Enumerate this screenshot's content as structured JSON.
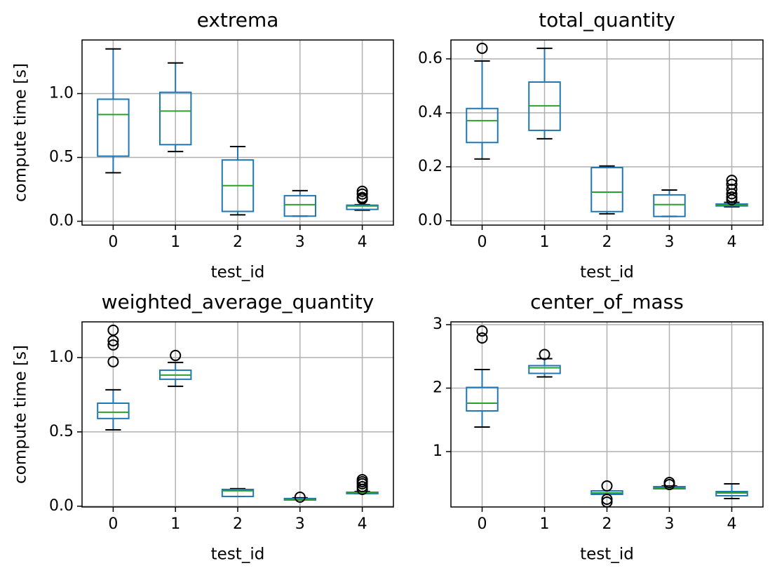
{
  "chart_data": [
    {
      "type": "box",
      "title": "extrema",
      "xlabel": "test_id",
      "ylabel": "compute time [s]",
      "categories": [
        "0",
        "1",
        "2",
        "3",
        "4"
      ],
      "color": "#1f77b4",
      "median_color": "#2ca02c",
      "grid": true,
      "ylim": [
        -0.03,
        1.42
      ],
      "yticks": [
        {
          "value": 0,
          "label": "0.0"
        },
        {
          "value": 0.5,
          "label": "0.5"
        },
        {
          "value": 1,
          "label": "1.0"
        }
      ],
      "boxes": [
        {
          "whislo": 0.38,
          "q1": 0.51,
          "med": 0.836,
          "q3": 0.956,
          "whishi": 1.35,
          "fliers": []
        },
        {
          "whislo": 0.546,
          "q1": 0.6,
          "med": 0.863,
          "q3": 1.01,
          "whishi": 1.24,
          "fliers": []
        },
        {
          "whislo": 0.05,
          "q1": 0.077,
          "med": 0.279,
          "q3": 0.48,
          "whishi": 0.585,
          "fliers": []
        },
        {
          "whislo": 0.04,
          "q1": 0.04,
          "med": 0.13,
          "q3": 0.2,
          "whishi": 0.24,
          "fliers": []
        },
        {
          "whislo": 0.087,
          "q1": 0.093,
          "med": 0.12,
          "q3": 0.126,
          "whishi": 0.13,
          "fliers": [
            0.235,
            0.213,
            0.186,
            0.175
          ]
        }
      ]
    },
    {
      "type": "box",
      "title": "total_quantity",
      "xlabel": "test_id",
      "categories": [
        "0",
        "1",
        "2",
        "3",
        "4"
      ],
      "color": "#1f77b4",
      "median_color": "#2ca02c",
      "grid": true,
      "ylim": [
        -0.016,
        0.67
      ],
      "yticks": [
        {
          "value": 0,
          "label": "0.0"
        },
        {
          "value": 0.2,
          "label": "0.2"
        },
        {
          "value": 0.4,
          "label": "0.4"
        },
        {
          "value": 0.6,
          "label": "0.6"
        }
      ],
      "boxes": [
        {
          "whislo": 0.229,
          "q1": 0.29,
          "med": 0.371,
          "q3": 0.416,
          "whishi": 0.592,
          "fliers": [
            0.639
          ]
        },
        {
          "whislo": 0.304,
          "q1": 0.335,
          "med": 0.426,
          "q3": 0.514,
          "whishi": 0.639,
          "fliers": []
        },
        {
          "whislo": 0.026,
          "q1": 0.034,
          "med": 0.106,
          "q3": 0.197,
          "whishi": 0.203,
          "fliers": []
        },
        {
          "whislo": 0.016,
          "q1": 0.016,
          "med": 0.06,
          "q3": 0.096,
          "whishi": 0.114,
          "fliers": []
        },
        {
          "whislo": 0.052,
          "q1": 0.055,
          "med": 0.058,
          "q3": 0.062,
          "whishi": 0.068,
          "fliers": [
            0.15,
            0.135,
            0.117,
            0.1,
            0.088,
            0.078
          ]
        }
      ]
    },
    {
      "type": "box",
      "title": "weighted_average_quantity",
      "xlabel": "test_id",
      "ylabel": "compute time [s]",
      "categories": [
        "0",
        "1",
        "2",
        "3",
        "4"
      ],
      "color": "#1f77b4",
      "median_color": "#2ca02c",
      "grid": true,
      "ylim": [
        -0.005,
        1.24
      ],
      "yticks": [
        {
          "value": 0,
          "label": "0.0"
        },
        {
          "value": 0.5,
          "label": "0.5"
        },
        {
          "value": 1,
          "label": "1.0"
        }
      ],
      "boxes": [
        {
          "whislo": 0.514,
          "q1": 0.59,
          "med": 0.632,
          "q3": 0.693,
          "whishi": 0.783,
          "fliers": [
            1.184,
            1.113,
            1.085,
            0.972
          ]
        },
        {
          "whislo": 0.807,
          "q1": 0.854,
          "med": 0.882,
          "q3": 0.915,
          "whishi": 0.967,
          "fliers": [
            1.014
          ]
        },
        {
          "whislo": 0.066,
          "q1": 0.066,
          "med": 0.104,
          "q3": 0.113,
          "whishi": 0.118,
          "fliers": []
        },
        {
          "whislo": 0.042,
          "q1": 0.042,
          "med": 0.047,
          "q3": 0.052,
          "whishi": 0.057,
          "fliers": [
            0.061
          ]
        },
        {
          "whislo": 0.085,
          "q1": 0.085,
          "med": 0.09,
          "q3": 0.094,
          "whishi": 0.099,
          "fliers": [
            0.179,
            0.165,
            0.151,
            0.132,
            0.113
          ]
        }
      ]
    },
    {
      "type": "box",
      "title": "center_of_mass",
      "xlabel": "test_id",
      "categories": [
        "0",
        "1",
        "2",
        "3",
        "4"
      ],
      "color": "#1f77b4",
      "median_color": "#2ca02c",
      "grid": true,
      "ylim": [
        0.127,
        3.044
      ],
      "yticks": [
        1,
        2,
        3
      ],
      "boxes": [
        {
          "whislo": 1.387,
          "q1": 1.641,
          "med": 1.762,
          "q3": 2.011,
          "whishi": 2.293,
          "fliers": [
            2.79,
            2.9
          ]
        },
        {
          "whislo": 2.177,
          "q1": 2.232,
          "med": 2.32,
          "q3": 2.354,
          "whishi": 2.464,
          "fliers": [
            2.53
          ]
        },
        {
          "whislo": 0.326,
          "q1": 0.326,
          "med": 0.348,
          "q3": 0.381,
          "whishi": 0.381,
          "fliers": [
            0.459,
            0.249,
            0.205
          ]
        },
        {
          "whislo": 0.414,
          "q1": 0.414,
          "med": 0.425,
          "q3": 0.447,
          "whishi": 0.458,
          "fliers": [
            0.514,
            0.48
          ]
        },
        {
          "whislo": 0.26,
          "q1": 0.304,
          "med": 0.348,
          "q3": 0.37,
          "whishi": 0.492,
          "fliers": []
        }
      ]
    }
  ]
}
